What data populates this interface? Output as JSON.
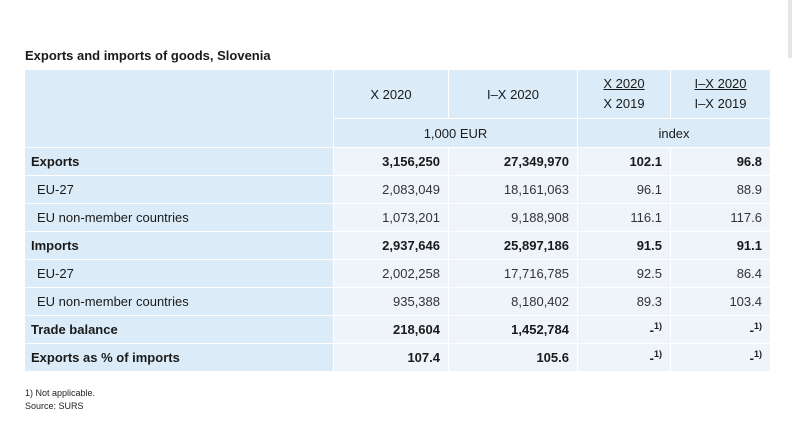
{
  "title": "Exports and imports of goods, Slovenia",
  "headers": {
    "col1": "X 2020",
    "col2": "I–X 2020",
    "col3_top": "X 2020",
    "col3_bottom": "X 2019",
    "col4_top": "I–X 2020",
    "col4_bottom": "I–X 2019",
    "unit_left": "1,000 EUR",
    "unit_right": "index"
  },
  "rows": [
    {
      "label": "Exports",
      "v1": "3,156,250",
      "v2": "27,349,970",
      "v3": "102.1",
      "v4": "96.8"
    },
    {
      "label": "EU-27",
      "v1": "2,083,049",
      "v2": "18,161,063",
      "v3": "96.1",
      "v4": "88.9"
    },
    {
      "label": "EU non-member countries",
      "v1": "1,073,201",
      "v2": "9,188,908",
      "v3": "116.1",
      "v4": "117.6"
    },
    {
      "label": "Imports",
      "v1": "2,937,646",
      "v2": "25,897,186",
      "v3": "91.5",
      "v4": "91.1"
    },
    {
      "label": "EU-27",
      "v1": "2,002,258",
      "v2": "17,716,785",
      "v3": "92.5",
      "v4": "86.4"
    },
    {
      "label": "EU non-member countries",
      "v1": "935,388",
      "v2": "8,180,402",
      "v3": "89.3",
      "v4": "103.4"
    },
    {
      "label": "Trade balance",
      "v1": "218,604",
      "v2": "1,452,784",
      "v3": "-",
      "v4": "-"
    },
    {
      "label": "Exports as % of imports",
      "v1": "107.4",
      "v2": "105.6",
      "v3": "-",
      "v4": "-"
    }
  ],
  "na_footnote_mark": "1)",
  "notes": {
    "footnote": "1) Not applicable.",
    "source": "Source: SURS"
  }
}
